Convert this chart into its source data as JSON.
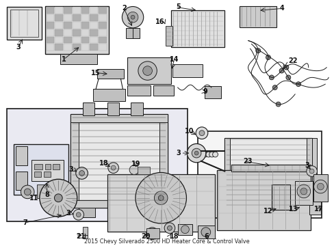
{
  "title": "2015 Chevy Silverado 2500 HD Heater Core & Control Valve",
  "bg_color": "#ffffff",
  "line_color": "#1a1a1a",
  "label_color": "#111111",
  "box_fill": "#f0f0f5",
  "box2_fill": "#f5f5f5",
  "part_fill": "#d0d0d0",
  "hatch_fill": "#b8b8b8",
  "label_fs": 7,
  "figsize": [
    4.89,
    3.6
  ],
  "dpi": 100
}
